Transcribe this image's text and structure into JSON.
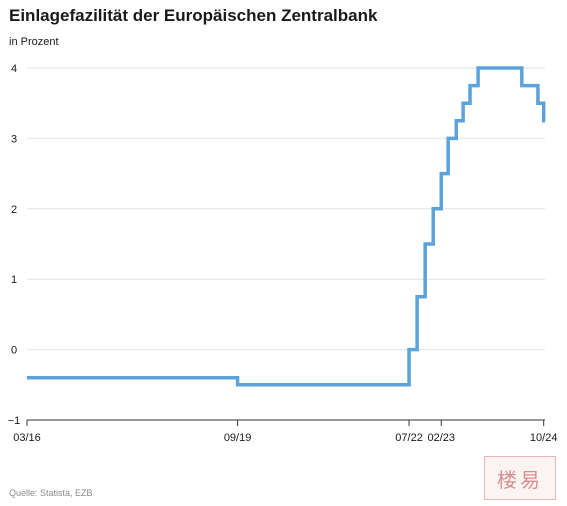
{
  "chart_data": {
    "type": "line",
    "title": "Einlagefazilität der Europäischen Zentralbank",
    "subtitle": "in Prozent",
    "source": "Quelle: Statista, EZB",
    "xlabel": "",
    "ylabel": "",
    "ylim": [
      -1,
      4
    ],
    "xlim": [
      "2016-03-16",
      "2024-10-31"
    ],
    "grid": true,
    "line_style": "step",
    "y_ticks": [
      {
        "value": 4,
        "label": "4"
      },
      {
        "value": 3,
        "label": "3"
      },
      {
        "value": 2,
        "label": "2"
      },
      {
        "value": 1,
        "label": "1"
      },
      {
        "value": 0,
        "label": "0"
      },
      {
        "value": -1,
        "label": "−1"
      }
    ],
    "x_ticks": [
      {
        "date": "2016-03-16",
        "label": "03/16"
      },
      {
        "date": "2019-09-18",
        "label": "09/19"
      },
      {
        "date": "2022-07-27",
        "label": "07/22"
      },
      {
        "date": "2023-02-08",
        "label": "02/23"
      },
      {
        "date": "2024-10-23",
        "label": "10/24"
      }
    ],
    "series": [
      {
        "color": "#5ba3dc",
        "points": [
          {
            "x": "2016-03-16",
            "y": -0.4
          },
          {
            "x": "2019-09-18",
            "y": -0.5
          },
          {
            "x": "2022-07-27",
            "y": 0
          },
          {
            "x": "2022-09-14",
            "y": 0.75
          },
          {
            "x": "2022-11-02",
            "y": 1.5
          },
          {
            "x": "2022-12-21",
            "y": 2
          },
          {
            "x": "2023-02-08",
            "y": 2.5
          },
          {
            "x": "2023-03-22",
            "y": 3
          },
          {
            "x": "2023-05-10",
            "y": 3.25
          },
          {
            "x": "2023-06-21",
            "y": 3.5
          },
          {
            "x": "2023-08-02",
            "y": 3.75
          },
          {
            "x": "2023-09-20",
            "y": 4
          },
          {
            "x": "2024-06-12",
            "y": 3.75
          },
          {
            "x": "2024-09-18",
            "y": 3.5
          },
          {
            "x": "2024-10-23",
            "y": 3.25
          }
        ]
      }
    ]
  },
  "watermark": "楼易"
}
